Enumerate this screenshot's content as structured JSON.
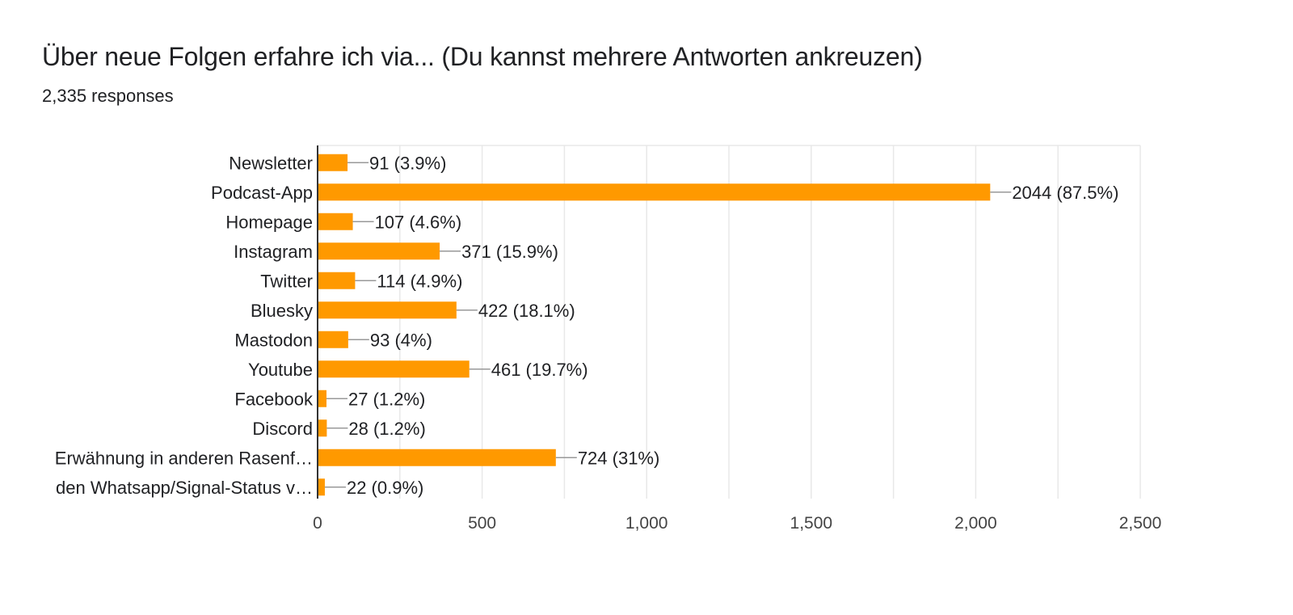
{
  "header": {
    "title": "Über neue Folgen erfahre ich via...  (Du kannst mehrere Antworten ankreuzen)",
    "responses": "2,335 responses"
  },
  "chart_data": {
    "type": "bar",
    "orientation": "horizontal",
    "categories": [
      "Newsletter",
      "Podcast-App",
      "Homepage",
      "Instagram",
      "Twitter",
      "Bluesky",
      "Mastodon",
      "Youtube",
      "Facebook",
      "Discord",
      "Erwähnung in anderen Rasenf…",
      "den Whatsapp/Signal-Status v…"
    ],
    "values": [
      91,
      2044,
      107,
      371,
      114,
      422,
      93,
      461,
      27,
      28,
      724,
      22
    ],
    "data_labels": [
      "91 (3.9%)",
      "2044 (87.5%)",
      "107 (4.6%)",
      "371 (15.9%)",
      "114 (4.9%)",
      "422 (18.1%)",
      "93 (4%)",
      "461 (19.7%)",
      "27 (1.2%)",
      "28 (1.2%)",
      "724 (31%)",
      "22 (0.9%)"
    ],
    "xlim": [
      0,
      2500
    ],
    "x_ticks": [
      0,
      500,
      1000,
      1500,
      2000,
      2500
    ],
    "x_tick_labels": [
      "0",
      "500",
      "1,000",
      "1,500",
      "2,000",
      "2,500"
    ],
    "grid": true,
    "legend": "none",
    "colors": {
      "bar": "#ff9900",
      "grid": "#e8e8e8",
      "axis": "#333333",
      "leader": "#999999"
    }
  }
}
